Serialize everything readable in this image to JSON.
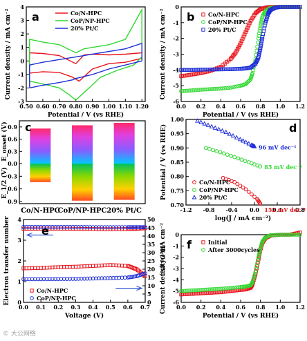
{
  "watermark": "© 大公网络",
  "chart_data": [
    {
      "panel": "a",
      "type": "line",
      "xlabel": "Potential / V (vs RHE)",
      "ylabel": "Current density / mA cm⁻²",
      "xlim": [
        0.5,
        1.22
      ],
      "ylim": [
        -3,
        4
      ],
      "xticks": [
        0.5,
        0.6,
        0.7,
        0.8,
        0.9,
        1.0,
        1.1,
        1.2
      ],
      "yticks": [
        -3,
        -2,
        -1,
        0,
        1,
        2,
        3,
        4
      ],
      "legend_position": "top-center",
      "series": [
        {
          "name": "Co/N-HPC",
          "color": "#e8141c",
          "x": [
            0.52,
            0.6,
            0.7,
            0.78,
            0.82,
            0.9,
            1.0,
            1.1,
            1.2,
            1.2,
            1.1,
            1.0,
            0.9,
            0.85,
            0.8,
            0.7,
            0.6,
            0.52
          ],
          "y": [
            -0.9,
            -0.8,
            -0.85,
            -1.2,
            -1.5,
            -0.6,
            -0.2,
            -0.1,
            0.2,
            0.6,
            0.5,
            0.45,
            0.5,
            0.45,
            -0.2,
            0.4,
            0.55,
            0.6
          ]
        },
        {
          "name": "CoP/NP-HPC",
          "color": "#2ed82e",
          "x": [
            0.52,
            0.6,
            0.7,
            0.76,
            0.8,
            0.88,
            0.95,
            1.05,
            1.15,
            1.2,
            1.2,
            1.1,
            1.0,
            0.9,
            0.85,
            0.8,
            0.7,
            0.6,
            0.52
          ],
          "y": [
            -1.5,
            -1.7,
            -2.0,
            -2.5,
            -2.9,
            -2.0,
            -1.2,
            -0.7,
            -0.3,
            0.3,
            3.8,
            1.6,
            1.2,
            1.0,
            0.9,
            0.6,
            1.2,
            1.4,
            1.6
          ]
        },
        {
          "name": "20% Pt/C",
          "color": "#1e2fd8",
          "x": [
            0.52,
            0.6,
            0.7,
            0.78,
            0.8,
            0.9,
            1.0,
            1.1,
            1.2,
            1.2,
            1.1,
            1.0,
            0.9,
            0.8,
            0.7,
            0.6,
            0.52
          ],
          "y": [
            -2.0,
            -1.8,
            -1.6,
            -1.4,
            -1.3,
            -1.0,
            -0.6,
            -0.3,
            0.0,
            1.3,
            0.9,
            0.7,
            0.5,
            0.3,
            0.1,
            -0.1,
            -0.3
          ]
        }
      ]
    },
    {
      "panel": "b",
      "type": "scatter",
      "xlabel": "Potential / V (vs RHE)",
      "ylabel": "Current density / mA cm⁻²",
      "xlim": [
        0.0,
        1.2
      ],
      "ylim": [
        -6,
        0
      ],
      "xticks": [
        0.0,
        0.2,
        0.4,
        0.6,
        0.8,
        1.0,
        1.2
      ],
      "yticks": [
        -6,
        -5,
        -4,
        -3,
        -2,
        -1,
        0
      ],
      "legend_position": "top-left",
      "series": [
        {
          "name": "Co/N-HPC",
          "color": "#e8141c",
          "x": [
            0.0,
            0.1,
            0.2,
            0.3,
            0.4,
            0.5,
            0.55,
            0.6,
            0.65,
            0.7,
            0.75,
            0.8,
            0.85,
            0.9,
            1.0,
            1.1,
            1.2
          ],
          "y": [
            -4.4,
            -4.3,
            -4.2,
            -4.05,
            -3.8,
            -3.3,
            -2.9,
            -2.3,
            -1.6,
            -0.9,
            -0.4,
            -0.15,
            -0.05,
            0,
            0,
            0,
            0
          ]
        },
        {
          "name": "CoP/NP-HPC",
          "color": "#2ed82e",
          "x": [
            0.0,
            0.1,
            0.2,
            0.3,
            0.4,
            0.5,
            0.6,
            0.65,
            0.7,
            0.72,
            0.75,
            0.78,
            0.8,
            0.82,
            0.85,
            0.9,
            1.0,
            1.1,
            1.2
          ],
          "y": [
            -5.35,
            -5.3,
            -5.25,
            -5.22,
            -5.18,
            -5.12,
            -5.0,
            -4.9,
            -4.6,
            -4.2,
            -3.3,
            -2.0,
            -1.2,
            -0.6,
            -0.25,
            -0.05,
            0,
            0,
            0
          ]
        },
        {
          "name": "20% Pt/C",
          "color": "#1e2fd8",
          "x": [
            0.0,
            0.1,
            0.2,
            0.3,
            0.4,
            0.5,
            0.6,
            0.65,
            0.7,
            0.75,
            0.78,
            0.8,
            0.82,
            0.85,
            0.88,
            0.9,
            0.95,
            1.0,
            1.1,
            1.2
          ],
          "y": [
            -4.0,
            -4.0,
            -3.98,
            -3.97,
            -3.96,
            -3.95,
            -3.93,
            -3.9,
            -3.85,
            -3.6,
            -3.2,
            -2.6,
            -1.9,
            -1.0,
            -0.4,
            -0.2,
            -0.05,
            0,
            0,
            0
          ]
        }
      ]
    },
    {
      "panel": "c",
      "type": "bar",
      "categories": [
        "Co/N-HPC",
        "CoP/NP-HPC",
        "20% Pt/C"
      ],
      "ylabel_top": "E_onset (V)",
      "ylabel_bottom": "E_1/2 (V)",
      "onset": [
        0.86,
        0.94,
        1.0
      ],
      "half_wave": [
        0.44,
        0.88,
        0.86
      ],
      "yticks_top": [
        0.0,
        0.3,
        0.6,
        0.9
      ],
      "yticks_bottom": [
        0.0,
        0.3,
        0.6,
        0.9
      ],
      "ylim_top": [
        0,
        1.05
      ],
      "ylim_bottom": [
        0,
        0.95
      ]
    },
    {
      "panel": "d",
      "type": "scatter",
      "xlabel": "log(J / mA cm⁻²)",
      "ylabel": "Potential / V (vs RHE)",
      "xlim": [
        -1.2,
        0.8
      ],
      "ylim": [
        0.7,
        1.0
      ],
      "xticks": [
        -1.2,
        -0.8,
        -0.4,
        0.0,
        0.4,
        0.8
      ],
      "yticks": [
        0.7,
        0.75,
        0.8,
        0.85,
        0.9,
        0.95,
        1.0
      ],
      "legend_position": "bottom-left",
      "series": [
        {
          "name": "Co/N-HPC",
          "color": "#e8141c",
          "tafel": "152 mV dec⁻¹",
          "x": [
            -0.55,
            -0.35,
            -0.15,
            0.05,
            0.1
          ],
          "y": [
            0.795,
            0.78,
            0.755,
            0.72,
            0.705
          ]
        },
        {
          "name": "CoP/NP-HPC",
          "color": "#2ed82e",
          "tafel": "85 mV dec⁻¹",
          "x": [
            -0.85,
            -0.6,
            -0.35,
            -0.1,
            0.1
          ],
          "y": [
            0.9,
            0.885,
            0.868,
            0.85,
            0.835
          ]
        },
        {
          "name": "20% Pt/C",
          "color": "#1e2fd8",
          "tafel": "96 mV dec⁻¹",
          "x": [
            -1.0,
            -0.75,
            -0.5,
            -0.25,
            -0.05,
            0.0
          ],
          "y": [
            0.995,
            0.975,
            0.955,
            0.93,
            0.91,
            0.905
          ]
        }
      ]
    },
    {
      "panel": "e",
      "type": "scatter",
      "xlabel": "Voltage (V)",
      "ylabel": "Electron transfer number",
      "ylabel_right": "H₂O₂ (%)",
      "xlim": [
        0.0,
        0.7
      ],
      "ylim": [
        0,
        4
      ],
      "ylim_right": [
        0,
        50
      ],
      "xticks": [
        0.0,
        0.1,
        0.2,
        0.3,
        0.4,
        0.5,
        0.6,
        0.7
      ],
      "yticks": [
        0,
        1,
        2,
        3,
        4
      ],
      "yticks_right": [
        0,
        5,
        10,
        15,
        20,
        25,
        30,
        35,
        40,
        45,
        50
      ],
      "legend_position": "bottom-left",
      "series": [
        {
          "name": "Co/N-HPC",
          "color": "#e8141c",
          "axis": "left",
          "x": [
            0.0,
            0.1,
            0.2,
            0.3,
            0.4,
            0.5,
            0.6,
            0.65,
            0.7
          ],
          "y": [
            3.55,
            3.56,
            3.56,
            3.55,
            3.54,
            3.53,
            3.54,
            3.55,
            3.58
          ]
        },
        {
          "name": "CoP/NP-HPC",
          "color": "#1e2fd8",
          "axis": "left",
          "x": [
            0.0,
            0.1,
            0.2,
            0.3,
            0.4,
            0.5,
            0.6,
            0.65,
            0.7
          ],
          "y": [
            3.64,
            3.64,
            3.64,
            3.64,
            3.63,
            3.63,
            3.63,
            3.63,
            3.63
          ]
        },
        {
          "name": "Co/N-HPC",
          "color": "#e8141c",
          "axis": "right",
          "x": [
            0.0,
            0.1,
            0.2,
            0.3,
            0.4,
            0.5,
            0.6,
            0.65,
            0.7
          ],
          "y": [
            20.5,
            20.8,
            21.2,
            21.5,
            22.0,
            22.5,
            22.0,
            20.0,
            16.0
          ]
        },
        {
          "name": "CoP/NP-HPC",
          "color": "#1e2fd8",
          "axis": "right",
          "x": [
            0.0,
            0.1,
            0.2,
            0.3,
            0.4,
            0.5,
            0.6,
            0.65,
            0.7
          ],
          "y": [
            14.0,
            14.0,
            14.1,
            14.2,
            14.4,
            14.6,
            15.0,
            15.8,
            17.5
          ]
        }
      ]
    },
    {
      "panel": "f",
      "type": "scatter",
      "xlabel": "Potential / V (vs RHE)",
      "ylabel": "Current density / mA cm⁻²",
      "xlim": [
        0.0,
        1.2
      ],
      "ylim": [
        -6,
        0
      ],
      "xticks": [
        0.0,
        0.2,
        0.4,
        0.6,
        0.8,
        1.0,
        1.2
      ],
      "yticks": [
        -6,
        -5,
        -4,
        -3,
        -2,
        -1,
        0
      ],
      "legend_position": "top-left",
      "series": [
        {
          "name": "Initial",
          "color": "#e8141c",
          "x": [
            0.0,
            0.1,
            0.2,
            0.3,
            0.4,
            0.5,
            0.6,
            0.65,
            0.7,
            0.72,
            0.75,
            0.78,
            0.8,
            0.82,
            0.85,
            0.9,
            1.0,
            1.1,
            1.2
          ],
          "y": [
            -5.3,
            -5.25,
            -5.2,
            -5.15,
            -5.1,
            -5.0,
            -4.9,
            -4.85,
            -4.7,
            -4.4,
            -3.5,
            -2.2,
            -1.3,
            -0.7,
            -0.3,
            -0.08,
            0,
            0,
            0.2
          ]
        },
        {
          "name": "After 3000cycles",
          "color": "#2ed82e",
          "x": [
            0.0,
            0.1,
            0.2,
            0.3,
            0.4,
            0.5,
            0.6,
            0.65,
            0.7,
            0.72,
            0.75,
            0.78,
            0.8,
            0.82,
            0.85,
            0.9,
            1.0,
            1.1,
            1.2
          ],
          "y": [
            -5.0,
            -4.95,
            -4.9,
            -4.85,
            -4.8,
            -4.72,
            -4.65,
            -4.6,
            -4.5,
            -4.2,
            -3.3,
            -2.0,
            -1.2,
            -0.6,
            -0.25,
            -0.05,
            0,
            0,
            0
          ]
        }
      ]
    }
  ]
}
